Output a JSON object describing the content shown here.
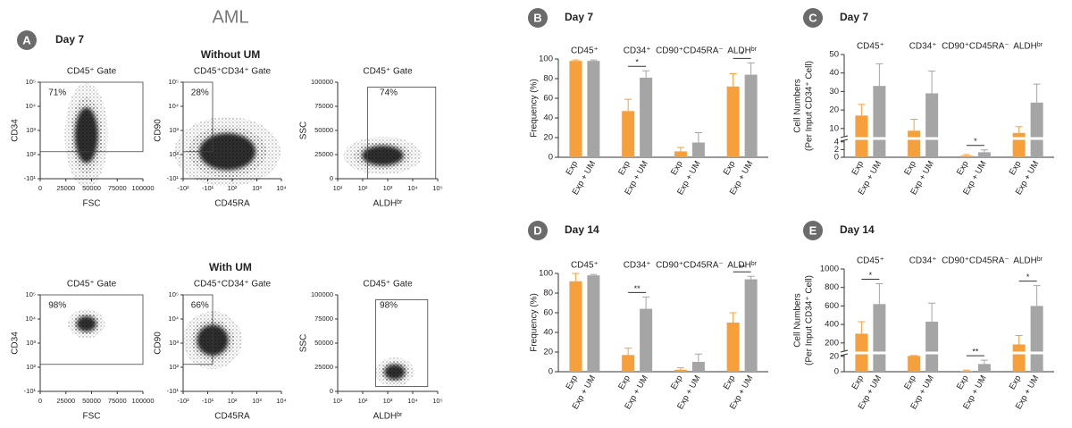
{
  "title": "AML",
  "panel_a": {
    "letter": "A",
    "title": "Day 7",
    "rows": [
      {
        "title": "Without UM",
        "plots": [
          {
            "gate": "CD45⁺ Gate",
            "percent": "71%",
            "x_label": "FSC",
            "y_label": "CD34",
            "x_tick_labels": [
              0,
              25000,
              50000,
              75000,
              100000
            ],
            "y_tick_labels": [
              "-10¹",
              "10²",
              "10³",
              "10⁴",
              "10⁵"
            ]
          },
          {
            "gate": "CD45⁺CD34⁺ Gate",
            "percent": "28%",
            "x_label": "CD45RA",
            "y_label": "CD90",
            "x_tick_labels": [
              "-10²",
              "-10¹",
              "10²",
              "10³",
              "10⁴"
            ],
            "y_tick_labels": [
              "-10¹",
              "10²",
              "10³",
              "10⁴",
              "10⁵"
            ]
          },
          {
            "gate": "CD45⁺ Gate",
            "percent": "74%",
            "x_label": "ALDHᵇʳ",
            "y_label": "SSC",
            "x_tick_labels": [
              "10¹",
              "10²",
              "10³",
              "10⁴",
              "10⁵"
            ],
            "y_tick_labels": [
              0,
              25000,
              50000,
              75000,
              100000
            ]
          }
        ]
      },
      {
        "title": "With UM",
        "plots": [
          {
            "gate": "CD45⁺ Gate",
            "percent": "98%",
            "x_label": "FSC",
            "y_label": "CD34",
            "x_tick_labels": [
              0,
              25000,
              50000,
              75000,
              100000
            ],
            "y_tick_labels": [
              "-10¹",
              "10²",
              "10³",
              "10⁴",
              "10⁵"
            ]
          },
          {
            "gate": "CD45⁺CD34⁺ Gate",
            "percent": "66%",
            "x_label": "CD45RA",
            "y_label": "CD90",
            "x_tick_labels": [
              "-10²",
              "-10¹",
              "10²",
              "10³",
              "10⁴"
            ],
            "y_tick_labels": [
              "-10¹",
              "10²",
              "10³",
              "10⁴",
              "10⁵"
            ]
          },
          {
            "gate": "CD45⁺ Gate",
            "percent": "98%",
            "x_label": "ALDHᵇʳ",
            "y_label": "SSC",
            "x_tick_labels": [
              "10¹",
              "10²",
              "10³",
              "10⁴",
              "10⁵"
            ],
            "y_tick_labels": [
              0,
              25000,
              50000,
              75000,
              100000
            ]
          }
        ]
      }
    ]
  },
  "chart_data": [
    {
      "type": "bar",
      "panel": "B",
      "title": "Day 7",
      "y_label": "Frequency (%)",
      "categories": [
        "CD45⁺",
        "CD34⁺",
        "CD90⁺CD45RA⁻",
        "ALDHᵇʳ"
      ],
      "series": [
        {
          "name": "Exp",
          "color": "#f5a03c",
          "values": [
            98,
            47,
            6,
            72
          ],
          "errors": [
            1,
            12,
            4,
            13
          ]
        },
        {
          "name": "Exp + UM",
          "color": "#a5a5a5",
          "values": [
            98,
            81,
            15,
            84
          ],
          "errors": [
            1,
            7,
            10,
            12
          ]
        }
      ],
      "significance": [
        null,
        "*",
        null,
        "*"
      ],
      "ylim": [
        0,
        100
      ],
      "yticks": [
        0,
        20,
        40,
        60,
        80,
        100
      ]
    },
    {
      "type": "bar",
      "panel": "C",
      "title": "Day 7",
      "y_label": [
        "Cell Numbers",
        "(Per Input CD34⁺ Cell)"
      ],
      "categories": [
        "CD45⁺",
        "CD34⁺",
        "CD90⁺CD45RA⁻",
        "ALDHᵇʳ"
      ],
      "series": [
        {
          "name": "Exp",
          "color": "#f5a03c",
          "values": [
            17,
            9,
            0.4,
            8
          ],
          "errors": [
            6,
            6,
            0.3,
            3
          ]
        },
        {
          "name": "Exp + UM",
          "color": "#a5a5a5",
          "values": [
            33,
            29,
            1.3,
            24
          ],
          "errors": [
            12,
            12,
            0.6,
            10
          ]
        }
      ],
      "significance": [
        null,
        null,
        "*",
        null
      ],
      "ylim": [
        0,
        50
      ],
      "yticks": [
        0,
        2,
        4,
        10,
        20,
        30,
        40,
        50
      ],
      "y_break": [
        4,
        10
      ]
    },
    {
      "type": "bar",
      "panel": "D",
      "title": "Day 14",
      "y_label": "Frequency (%)",
      "categories": [
        "CD45⁺",
        "CD34⁺",
        "CD90⁺CD45RA⁻",
        "ALDHᵇʳ"
      ],
      "series": [
        {
          "name": "Exp",
          "color": "#f5a03c",
          "values": [
            92,
            17,
            2,
            50
          ],
          "errors": [
            8,
            7,
            2,
            10
          ]
        },
        {
          "name": "Exp + UM",
          "color": "#a5a5a5",
          "values": [
            98,
            64,
            10,
            94
          ],
          "errors": [
            1,
            12,
            8,
            3
          ]
        }
      ],
      "significance": [
        null,
        "**",
        null,
        "**"
      ],
      "ylim": [
        0,
        100
      ],
      "yticks": [
        0,
        20,
        40,
        60,
        80,
        100
      ]
    },
    {
      "type": "bar",
      "panel": "E",
      "title": "Day 14",
      "y_label": [
        "Cell Numbers",
        "(Per Input CD34⁺ Cell)"
      ],
      "categories": [
        "CD45⁺",
        "CD34⁺",
        "CD90⁺CD45RA⁻",
        "ALDHᵇʳ"
      ],
      "series": [
        {
          "name": "Exp",
          "color": "#f5a03c",
          "values": [
            300,
            25,
            1,
            180
          ],
          "errors": [
            130,
            5,
            1,
            100
          ]
        },
        {
          "name": "Exp + UM",
          "color": "#a5a5a5",
          "values": [
            620,
            430,
            10,
            600
          ],
          "errors": [
            220,
            200,
            5,
            220
          ]
        }
      ],
      "significance": [
        "*",
        null,
        "**",
        "*"
      ],
      "ylim": [
        0,
        1000
      ],
      "yticks": [
        0,
        20,
        200,
        400,
        600,
        800,
        1000
      ],
      "y_break": [
        20,
        200
      ]
    }
  ]
}
